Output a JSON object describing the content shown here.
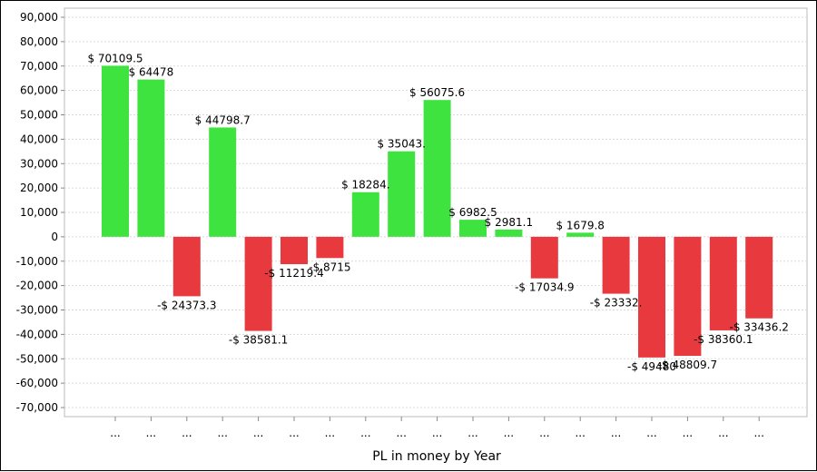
{
  "chart_data": {
    "type": "bar",
    "title": "",
    "xlabel": "PL in money by Year",
    "ylabel": "",
    "ylim": [
      -70000,
      90000
    ],
    "y_ticks": [
      "90,000",
      "80,000",
      "70,000",
      "60,000",
      "50,000",
      "40,000",
      "30,000",
      "20,000",
      "10,000",
      "0",
      "-10,000",
      "-20,000",
      "-30,000",
      "-40,000",
      "-50,000",
      "-60,000",
      "-70,000"
    ],
    "y_tick_values": [
      90000,
      80000,
      70000,
      60000,
      50000,
      40000,
      30000,
      20000,
      10000,
      0,
      -10000,
      -20000,
      -30000,
      -40000,
      -50000,
      -60000,
      -70000
    ],
    "categories": [
      "...",
      "...",
      "...",
      "...",
      "...",
      "...",
      "...",
      "...",
      "...",
      "...",
      "...",
      "...",
      "...",
      "...",
      "...",
      "...",
      "...",
      "...",
      "..."
    ],
    "values": [
      70109.5,
      64478,
      -24373.3,
      44798.7,
      -38581.1,
      -11219.4,
      -8715,
      18284,
      35043,
      56075.6,
      6982.5,
      2981.1,
      -17034.9,
      1679.8,
      -23332,
      -49480,
      -48809.7,
      -38360.1,
      -33436.2
    ],
    "data_labels": [
      "$ 70109.5",
      "$ 64478",
      "-$ 24373.3",
      "$ 44798.7",
      "-$ 38581.1",
      "-$ 11219.4",
      "-$ 8715",
      "$ 18284.",
      "$ 35043.",
      "$ 56075.6",
      "$ 6982.5",
      "$ 2981.1",
      "-$ 17034.9",
      "$ 1679.8",
      "-$ 23332.",
      "-$ 49480",
      "-$ 48809.7",
      "-$ 38360.1",
      "-$ 33436.2"
    ],
    "colors": {
      "positive": "#3fe33f",
      "negative": "#e8393f",
      "grid": "#d9d9d9",
      "axis": "#888888"
    },
    "grid": true,
    "legend": "none"
  }
}
